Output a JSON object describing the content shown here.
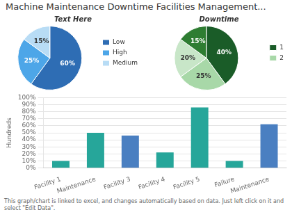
{
  "title": "Machine Maintenance Downtime Facilities Management...",
  "annotations": [
    "This graph/chart is linked to excel, and changes automatically based on data. Just left click on it and select \"Edit Data\"."
  ],
  "chart_data": [
    {
      "type": "pie",
      "title": "Text Here",
      "categories": [
        "Low",
        "High",
        "Medium"
      ],
      "values": [
        60,
        25,
        15
      ],
      "value_labels": [
        "60%",
        "25%",
        "15%"
      ],
      "colors": [
        "#2E6DB4",
        "#4DA6E8",
        "#B8DCF5"
      ],
      "data_labels": true,
      "legend": "right"
    },
    {
      "type": "pie",
      "title": "Downtime",
      "categories": [
        "1",
        "2",
        null,
        null
      ],
      "values": [
        40,
        25,
        20,
        15
      ],
      "value_labels": [
        "40%",
        "25%",
        "20%",
        "15%"
      ],
      "colors": [
        "#1A5C28",
        "#A8D8A8",
        "#C8E6C8",
        "#2E7D32"
      ],
      "data_labels": true,
      "legend": "right"
    },
    {
      "type": "bar",
      "categories": [
        "Facility 1",
        "Maintenance",
        "Facility 3",
        "Facility 4",
        "Facility 5",
        "Failure",
        "Maintenance"
      ],
      "values": [
        10,
        50,
        46,
        22,
        86,
        10,
        62
      ],
      "colors": [
        "#26A69A",
        "#26A69A",
        "#4A7FC1",
        "#26A69A",
        "#26A69A",
        "#26A69A",
        "#4A7FC1"
      ],
      "ylabel": "Hundreds",
      "ylim": [
        0,
        100
      ],
      "yticks": [
        {
          "value": 0,
          "label": "0%"
        },
        {
          "value": 10,
          "label": "10%"
        },
        {
          "value": 20,
          "label": "20%"
        },
        {
          "value": 30,
          "label": "30%"
        },
        {
          "value": 40,
          "label": "40%"
        },
        {
          "value": 50,
          "label": "50%"
        },
        {
          "value": 60,
          "label": "60%"
        },
        {
          "value": 70,
          "label": "70%"
        },
        {
          "value": 80,
          "label": "80%"
        },
        {
          "value": 90,
          "label": "90%"
        },
        {
          "value": 100,
          "label": "100%"
        }
      ],
      "grid": true
    }
  ]
}
